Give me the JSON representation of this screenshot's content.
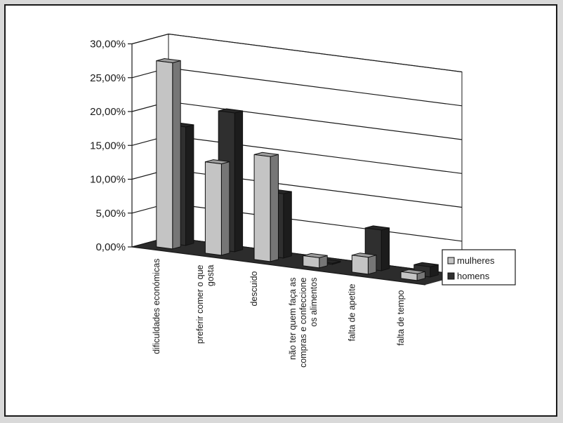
{
  "chart_data": {
    "type": "bar",
    "title": "",
    "xlabel": "",
    "ylabel": "",
    "ylim": [
      0,
      30
    ],
    "ytick_values": [
      0,
      5,
      10,
      15,
      20,
      25,
      30
    ],
    "ytick_labels": [
      "0,00%",
      "5,00%",
      "10,00%",
      "15,00%",
      "20,00%",
      "25,00%",
      "30,00%"
    ],
    "categories": [
      [
        "dificuldades económicas"
      ],
      [
        "preferir comer o que",
        "gosta"
      ],
      [
        "descuido"
      ],
      [
        "não ter quem faça as",
        "compras e confeccione",
        "os alimentos"
      ],
      [
        "falta de apetite"
      ],
      [
        "falta de tempo"
      ]
    ],
    "series": [
      {
        "name": "mulheres",
        "values": [
          27.5,
          13.5,
          15.5,
          1.5,
          2.5,
          1.0
        ],
        "color": "#c4c4c4"
      },
      {
        "name": "homens",
        "values": [
          17.5,
          20.5,
          9.5,
          0.0,
          6.0,
          1.5
        ],
        "color": "#2f2f2f"
      }
    ],
    "grid": true,
    "legend_position": "right",
    "style": "3d-clustered-column"
  }
}
